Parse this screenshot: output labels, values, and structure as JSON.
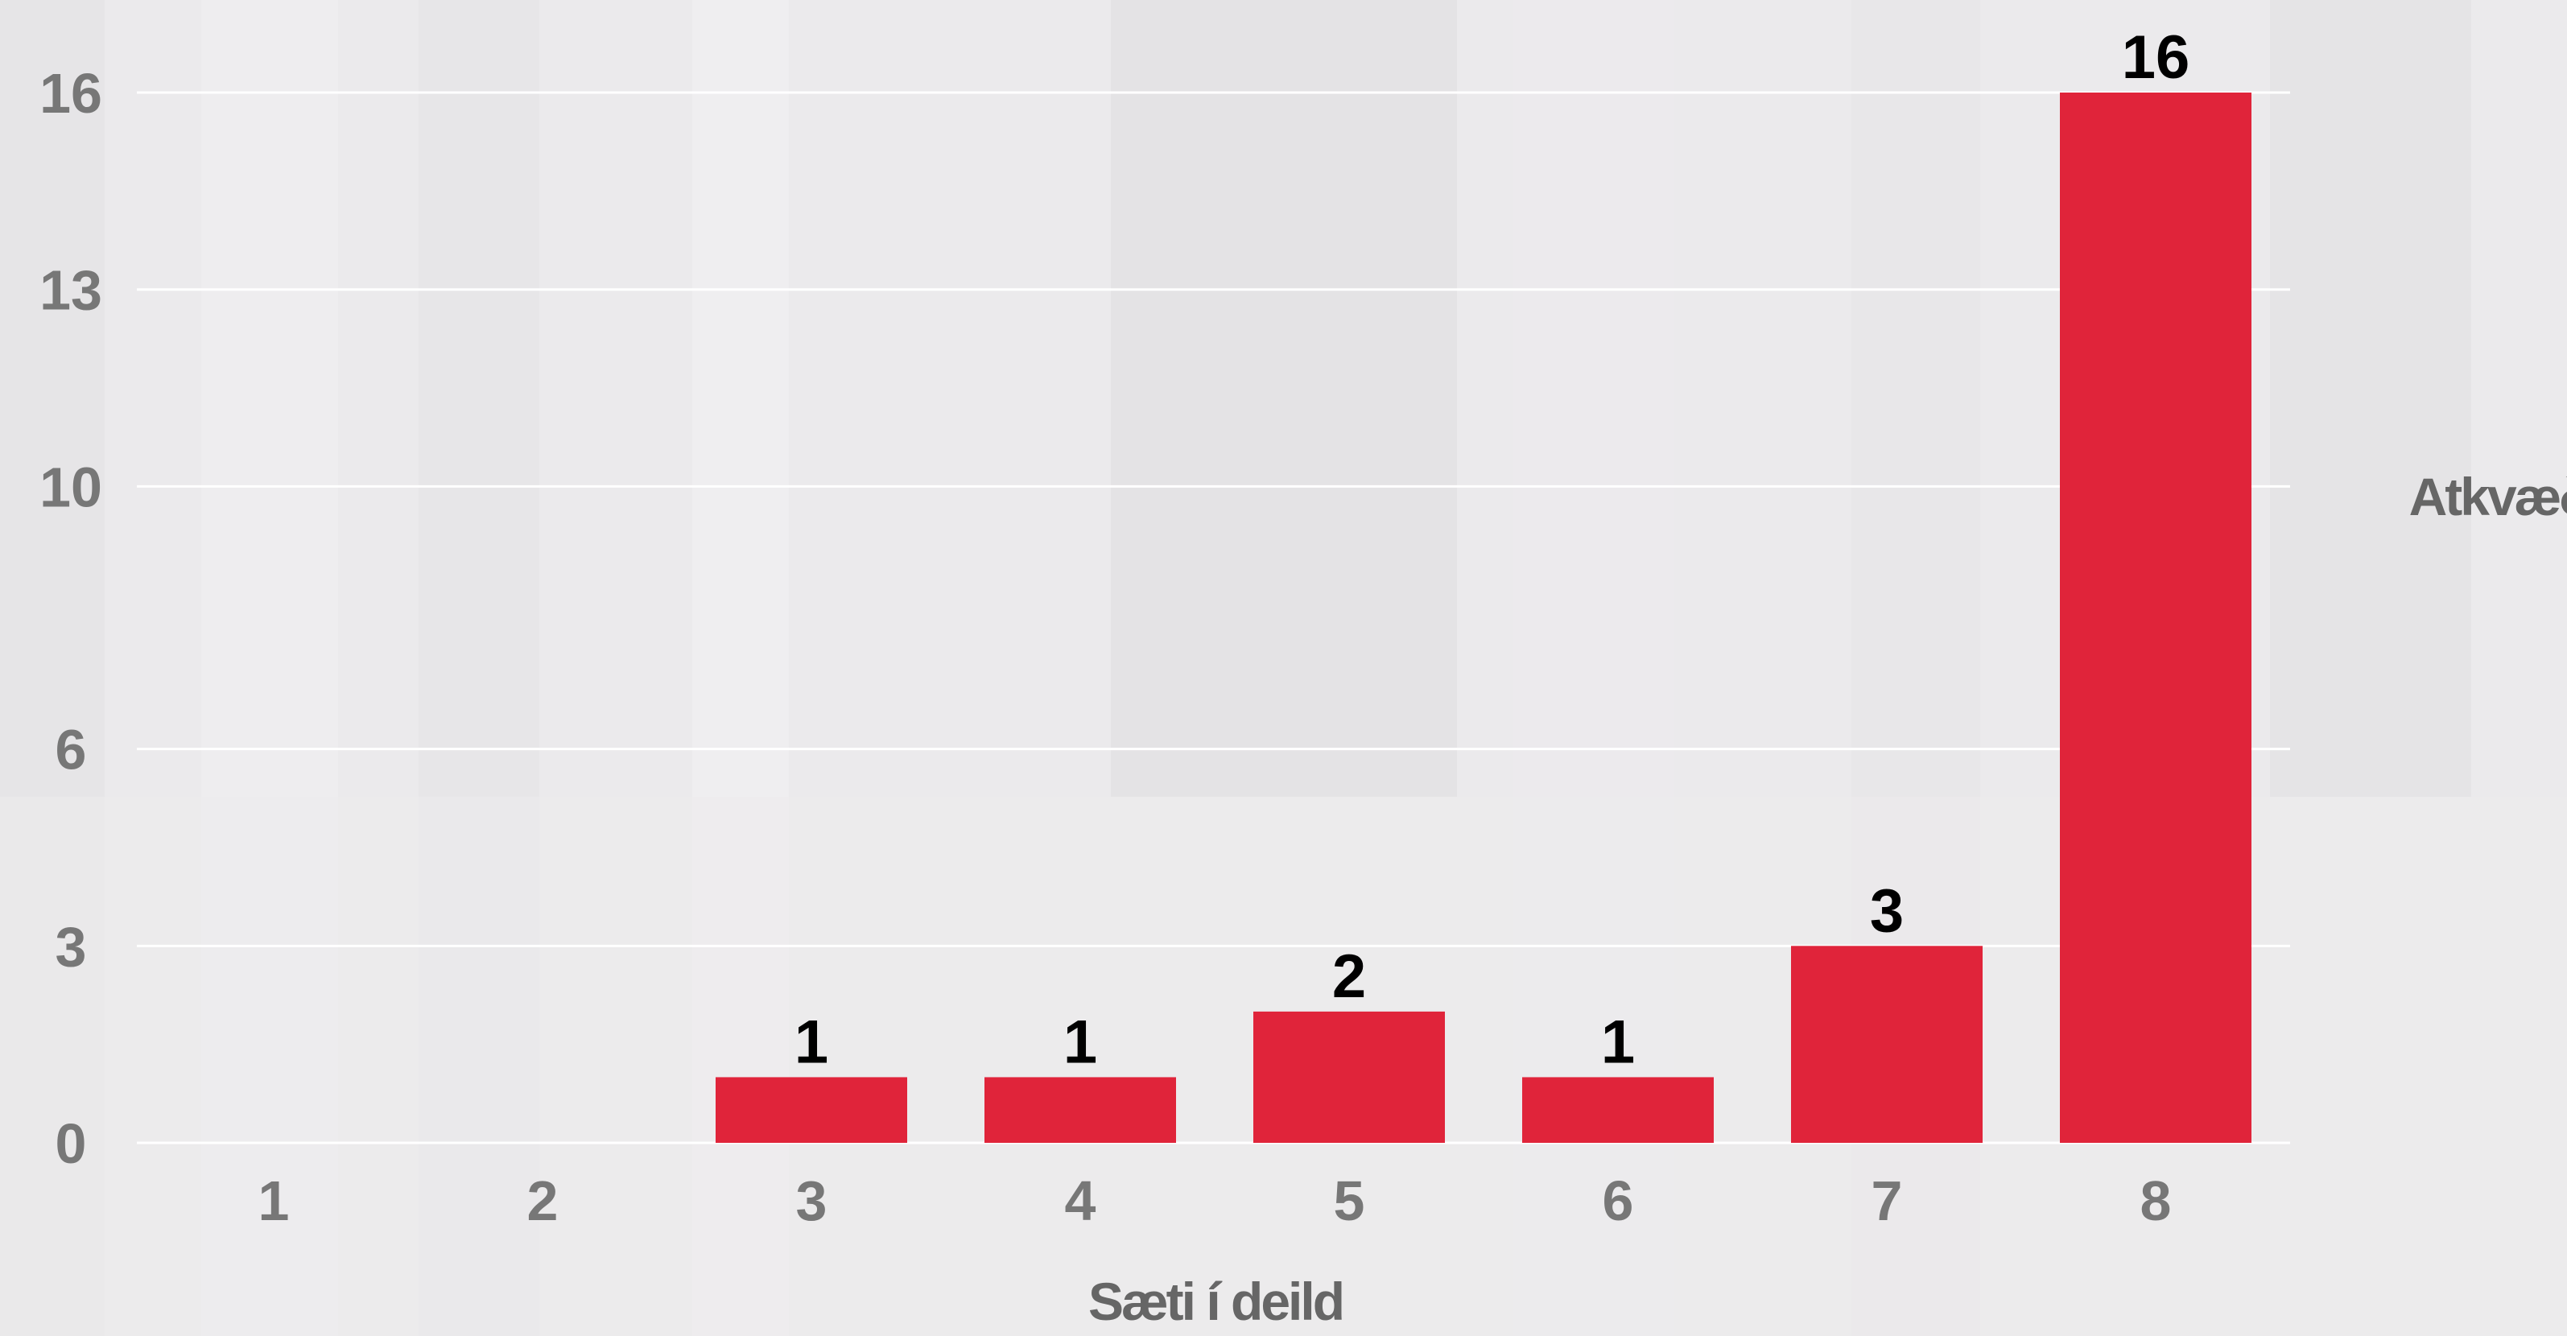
{
  "chart_data": {
    "type": "bar",
    "categories": [
      "1",
      "2",
      "3",
      "4",
      "5",
      "6",
      "7",
      "8"
    ],
    "values": [
      0,
      0,
      1,
      1,
      2,
      1,
      3,
      16
    ],
    "data_labels": [
      "",
      "",
      "1",
      "1",
      "2",
      "1",
      "3",
      "16"
    ],
    "yticks": [
      "0",
      "3",
      "6",
      "10",
      "13",
      "16"
    ],
    "ylim": [
      0,
      16
    ],
    "xlabel": "Sæti í deild",
    "ylabel": "Atkvæði",
    "grid": true,
    "legend": "none",
    "bar_color": "#e0243a",
    "background": "light gray wood texture"
  }
}
